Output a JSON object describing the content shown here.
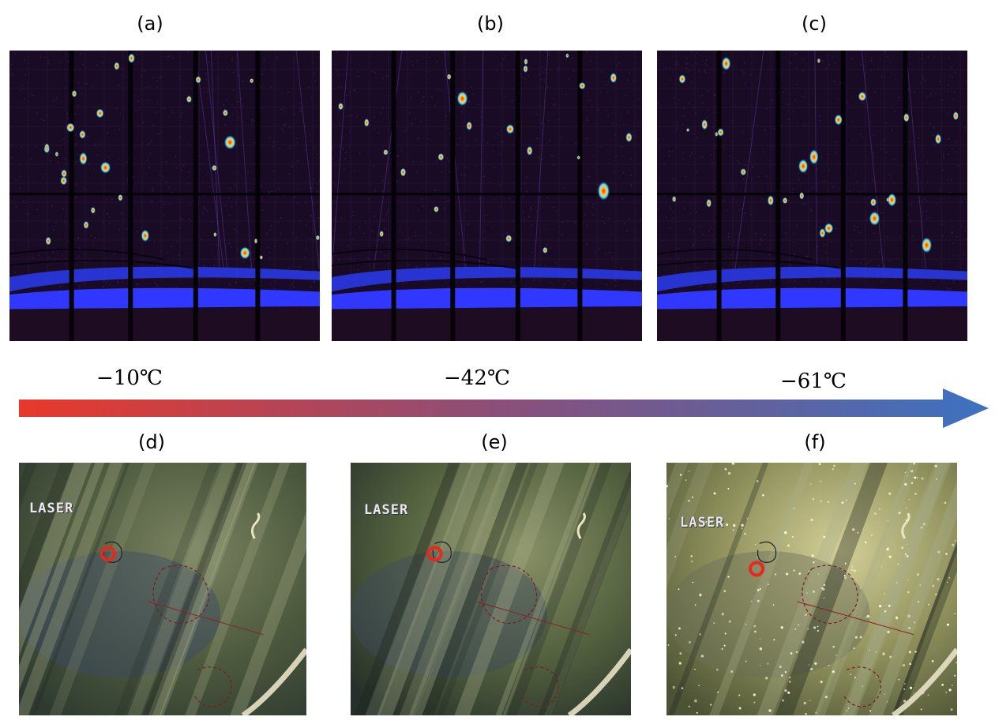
{
  "panels": [
    {
      "label": "(a)",
      "kind": "diffraction"
    },
    {
      "label": "(b)",
      "kind": "diffraction"
    },
    {
      "label": "(c)",
      "kind": "diffraction"
    },
    {
      "label": "(d)",
      "kind": "photo",
      "overlay_text": "LASER"
    },
    {
      "label": "(e)",
      "kind": "photo",
      "overlay_text": "LASER"
    },
    {
      "label": "(f)",
      "kind": "photo",
      "overlay_text": "LASER"
    }
  ],
  "temperature_axis": {
    "labels": [
      "−10℃",
      "−42℃",
      "−61℃"
    ],
    "gradient_start": "#e8392a",
    "gradient_mid": "#8a4f7a",
    "gradient_end": "#3c72c0",
    "arrow_icon": "right-arrow-icon"
  },
  "colors": {
    "detector_bg": "#120818",
    "hot_spot": "#e83010",
    "cold_band": "#2a2cff",
    "marker_circle": "#e8281e"
  }
}
